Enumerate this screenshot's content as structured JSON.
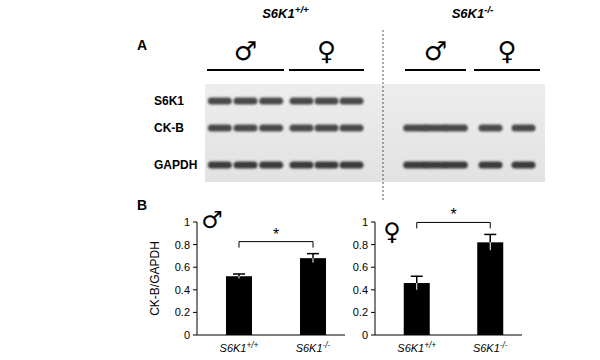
{
  "panel_labels": [
    "A",
    "B"
  ],
  "blot": {
    "groups": [
      {
        "genotype": "S6K1+/+",
        "sexes": [
          {
            "symbol": "♂",
            "lanes": 3
          },
          {
            "symbol": "♀",
            "lanes": 3
          }
        ]
      },
      {
        "genotype": "S6K1-/-",
        "sexes": [
          {
            "symbol": "♂",
            "lanes": 3
          },
          {
            "symbol": "♀",
            "lanes": 2
          }
        ]
      }
    ],
    "rows": [
      {
        "name": "S6K1",
        "present": [
          true,
          false
        ]
      },
      {
        "name": "CK-B",
        "present": [
          true,
          true
        ]
      },
      {
        "name": "GAPDH",
        "present": [
          true,
          true
        ]
      }
    ]
  },
  "chart_data": [
    {
      "type": "bar",
      "title": "♂",
      "y_label": "CK-B/GAPDH",
      "categories": [
        "S6K1+/+",
        "S6K1-/-"
      ],
      "values": [
        0.52,
        0.68
      ],
      "errors": [
        0.02,
        0.04
      ],
      "color": "#000000",
      "ylim": [
        0,
        1
      ],
      "yticks": [
        0,
        0.2,
        0.4,
        0.6,
        0.8,
        1
      ],
      "annotations": [
        {
          "text": "*",
          "between": [
            0,
            1
          ]
        }
      ]
    },
    {
      "type": "bar",
      "title": "♀",
      "categories": [
        "S6K1+/+",
        "S6K1-/-"
      ],
      "values": [
        0.46,
        0.82
      ],
      "errors": [
        0.06,
        0.07
      ],
      "color": "#000000",
      "ylim": [
        0,
        1
      ],
      "yticks": [
        0,
        0.2,
        0.4,
        0.6,
        0.8,
        1
      ],
      "annotations": [
        {
          "text": "*",
          "between": [
            0,
            1
          ]
        }
      ]
    }
  ]
}
